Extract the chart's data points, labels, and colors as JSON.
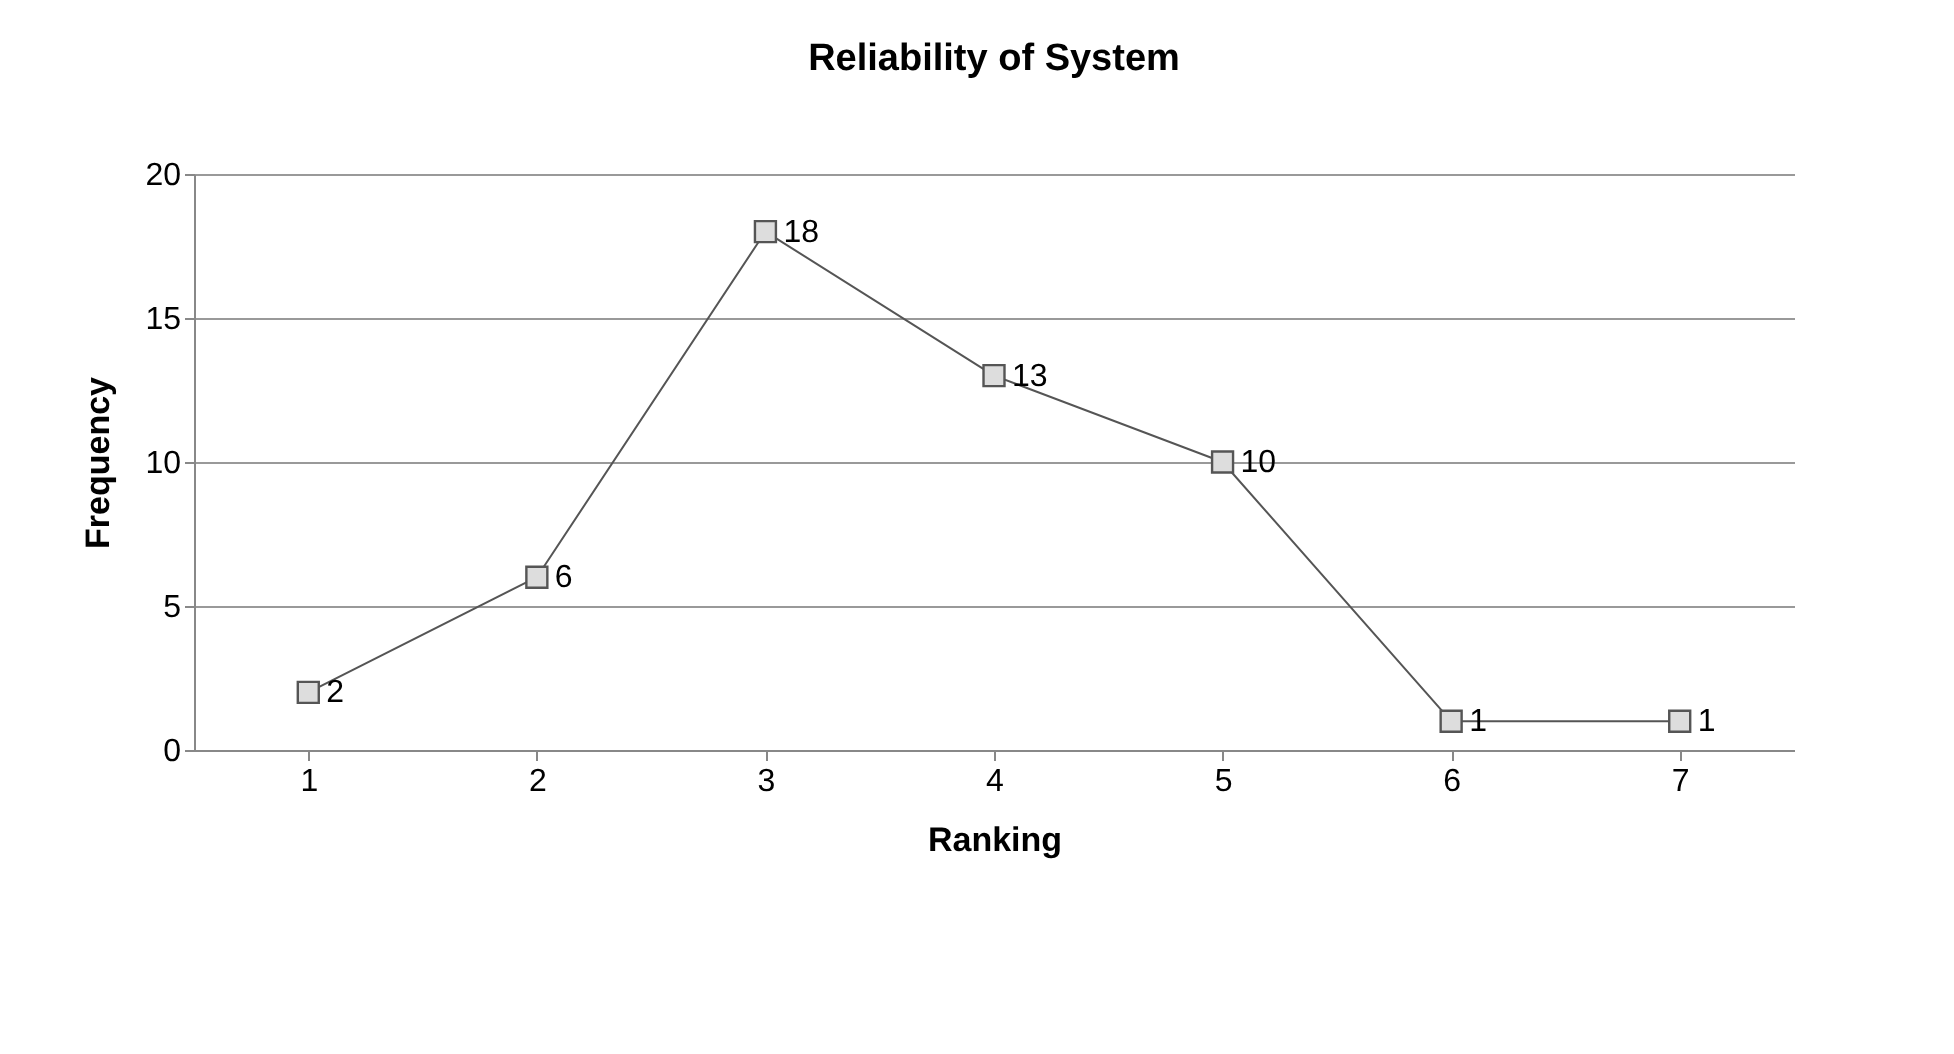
{
  "chart_data": {
    "type": "line",
    "title": "Reliability of System",
    "xlabel": "Ranking",
    "ylabel": "Frequency",
    "categories": [
      "1",
      "2",
      "3",
      "4",
      "5",
      "6",
      "7"
    ],
    "series": [
      {
        "color": "#555555",
        "values": [
          2,
          6,
          18,
          13,
          10,
          1,
          1
        ]
      }
    ],
    "ylim": [
      0,
      20
    ],
    "yticks": [
      0,
      5,
      10,
      15,
      20
    ],
    "grid": "y",
    "marker": "square",
    "line_style": "solid",
    "data_labels": true,
    "legend": false
  }
}
